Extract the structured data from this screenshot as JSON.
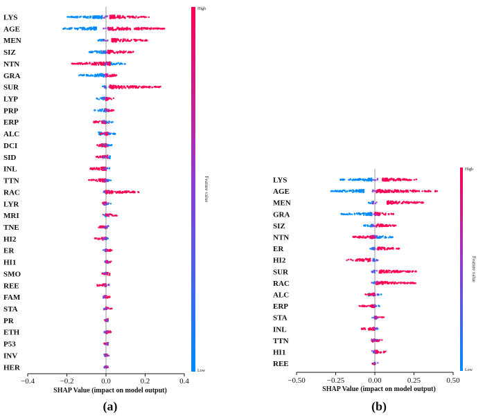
{
  "colors": {
    "high": "#ff0052",
    "mid": "#8a3fd1",
    "low": "#008bfb"
  },
  "chart_data": [
    {
      "type": "scatter",
      "chart_kind": "shap_beeswarm",
      "panel_label": "(a)",
      "xlabel": "SHAP Value (impact on model output)",
      "xlim": [
        -0.4,
        0.4
      ],
      "xticks": [
        -0.4,
        -0.2,
        0.0,
        0.2,
        0.4
      ],
      "xtick_labels": [
        "−0.4",
        "−0.2",
        "0.0",
        "0.2",
        "0.4"
      ],
      "colorbar": {
        "title": "Feature value",
        "high_label": "High",
        "low_label": "Low"
      },
      "features": [
        {
          "name": "LYS",
          "low_range": [
            -0.2,
            -0.02
          ],
          "high_range": [
            0.02,
            0.22
          ]
        },
        {
          "name": "AGE",
          "low_range": [
            -0.22,
            -0.05
          ],
          "high_range": [
            0.01,
            0.3
          ]
        },
        {
          "name": "MEN",
          "low_range": [
            -0.04,
            -0.01
          ],
          "high_range": [
            0.03,
            0.21
          ]
        },
        {
          "name": "SIZ",
          "low_range": [
            -0.09,
            0.0
          ],
          "high_range": [
            0.01,
            0.14
          ]
        },
        {
          "name": "NTN",
          "low_range": [
            -0.01,
            0.1
          ],
          "high_range": [
            -0.18,
            0.02
          ]
        },
        {
          "name": "GRA",
          "low_range": [
            -0.14,
            -0.01
          ],
          "high_range": [
            0.0,
            0.06
          ]
        },
        {
          "name": "SUR",
          "low_range": [
            -0.02,
            0.0
          ],
          "high_range": [
            0.02,
            0.28
          ]
        },
        {
          "name": "LYP",
          "low_range": [
            -0.05,
            0.0
          ],
          "high_range": [
            0.0,
            0.04
          ]
        },
        {
          "name": "PRP",
          "low_range": [
            -0.06,
            0.0
          ],
          "high_range": [
            0.0,
            0.04
          ]
        },
        {
          "name": "ERP",
          "low_range": [
            -0.02,
            0.04
          ],
          "high_range": [
            -0.07,
            0.0
          ]
        },
        {
          "name": "ALC",
          "low_range": [
            -0.04,
            0.05
          ],
          "high_range": [
            -0.03,
            0.01
          ]
        },
        {
          "name": "DCI",
          "low_range": [
            -0.02,
            0.03
          ],
          "high_range": [
            -0.05,
            0.0
          ]
        },
        {
          "name": "SID",
          "low_range": [
            -0.02,
            0.02
          ],
          "high_range": [
            -0.05,
            0.01
          ]
        },
        {
          "name": "INL",
          "low_range": [
            -0.01,
            0.02
          ],
          "high_range": [
            -0.09,
            0.0
          ]
        },
        {
          "name": "TTN",
          "low_range": [
            -0.01,
            0.03
          ],
          "high_range": [
            -0.09,
            0.0
          ]
        },
        {
          "name": "RAC",
          "low_range": [
            -0.01,
            0.0
          ],
          "high_range": [
            0.0,
            0.17
          ]
        },
        {
          "name": "LYR",
          "low_range": [
            -0.01,
            0.03
          ],
          "high_range": [
            -0.03,
            0.0
          ]
        },
        {
          "name": "MRI",
          "low_range": [
            -0.01,
            0.0
          ],
          "high_range": [
            0.0,
            0.06
          ]
        },
        {
          "name": "TNE",
          "low_range": [
            -0.01,
            0.01
          ],
          "high_range": [
            -0.04,
            0.0
          ]
        },
        {
          "name": "HI2",
          "low_range": [
            -0.01,
            0.01
          ],
          "high_range": [
            -0.06,
            0.0
          ]
        },
        {
          "name": "ER",
          "low_range": [
            -0.01,
            0.0
          ],
          "high_range": [
            0.0,
            0.03
          ]
        },
        {
          "name": "HI1",
          "low_range": [
            -0.01,
            0.01
          ],
          "high_range": [
            0.0,
            0.03
          ]
        },
        {
          "name": "SMO",
          "low_range": [
            -0.01,
            0.0
          ],
          "high_range": [
            -0.02,
            0.02
          ]
        },
        {
          "name": "REE",
          "low_range": [
            -0.01,
            0.0
          ],
          "high_range": [
            -0.05,
            0.0
          ]
        },
        {
          "name": "FAM",
          "low_range": [
            -0.01,
            0.0
          ],
          "high_range": [
            -0.01,
            0.02
          ]
        },
        {
          "name": "STA",
          "low_range": [
            -0.01,
            0.01
          ],
          "high_range": [
            0.0,
            0.03
          ]
        },
        {
          "name": "PR",
          "low_range": [
            -0.01,
            0.01
          ],
          "high_range": [
            -0.01,
            0.01
          ]
        },
        {
          "name": "ETH",
          "low_range": [
            -0.01,
            0.0
          ],
          "high_range": [
            0.0,
            0.03
          ]
        },
        {
          "name": "P53",
          "low_range": [
            -0.01,
            0.01
          ],
          "high_range": [
            -0.01,
            0.01
          ]
        },
        {
          "name": "INV",
          "low_range": [
            -0.01,
            0.0
          ],
          "high_range": [
            0.0,
            0.01
          ]
        },
        {
          "name": "HER",
          "low_range": [
            -0.01,
            0.0
          ],
          "high_range": [
            -0.01,
            0.01
          ]
        }
      ]
    },
    {
      "type": "scatter",
      "chart_kind": "shap_beeswarm",
      "panel_label": "(b)",
      "xlabel": "SHAP Value (impact on model output)",
      "xlim": [
        -0.5,
        0.5
      ],
      "xticks": [
        -0.5,
        -0.25,
        0.0,
        0.25,
        0.5
      ],
      "xtick_labels": [
        "−0.50",
        "−0.25",
        "0.00",
        "0.25",
        "0.50"
      ],
      "colorbar": {
        "title": "Feature value",
        "high_label": "High",
        "low_label": "Low"
      },
      "features": [
        {
          "name": "LYS",
          "low_range": [
            -0.22,
            -0.02
          ],
          "high_range": [
            0.05,
            0.27
          ]
        },
        {
          "name": "AGE",
          "low_range": [
            -0.28,
            -0.07
          ],
          "high_range": [
            0.01,
            0.4
          ]
        },
        {
          "name": "MEN",
          "low_range": [
            -0.04,
            -0.01
          ],
          "high_range": [
            0.08,
            0.31
          ]
        },
        {
          "name": "GRA",
          "low_range": [
            -0.22,
            -0.02
          ],
          "high_range": [
            0.0,
            0.12
          ]
        },
        {
          "name": "SIZ",
          "low_range": [
            -0.07,
            -0.01
          ],
          "high_range": [
            0.01,
            0.14
          ]
        },
        {
          "name": "NTN",
          "low_range": [
            -0.02,
            0.12
          ],
          "high_range": [
            -0.14,
            0.0
          ]
        },
        {
          "name": "ER",
          "low_range": [
            -0.03,
            0.0
          ],
          "high_range": [
            0.02,
            0.16
          ]
        },
        {
          "name": "HI2",
          "low_range": [
            -0.01,
            0.02
          ],
          "high_range": [
            -0.18,
            -0.03
          ]
        },
        {
          "name": "SUR",
          "low_range": [
            -0.02,
            0.0
          ],
          "high_range": [
            0.03,
            0.27
          ]
        },
        {
          "name": "RAC",
          "low_range": [
            -0.01,
            0.0
          ],
          "high_range": [
            0.01,
            0.26
          ]
        },
        {
          "name": "ALC",
          "low_range": [
            -0.04,
            0.05
          ],
          "high_range": [
            -0.06,
            0.0
          ]
        },
        {
          "name": "ERP",
          "low_range": [
            -0.02,
            0.03
          ],
          "high_range": [
            -0.1,
            0.0
          ]
        },
        {
          "name": "STA",
          "low_range": [
            -0.02,
            0.01
          ],
          "high_range": [
            0.0,
            0.06
          ]
        },
        {
          "name": "INL",
          "low_range": [
            -0.01,
            0.02
          ],
          "high_range": [
            -0.1,
            0.0
          ]
        },
        {
          "name": "TTN",
          "low_range": [
            -0.02,
            0.02
          ],
          "high_range": [
            -0.02,
            0.05
          ]
        },
        {
          "name": "HI1",
          "low_range": [
            -0.01,
            0.02
          ],
          "high_range": [
            0.0,
            0.08
          ]
        },
        {
          "name": "REE",
          "low_range": [
            -0.01,
            0.0
          ],
          "high_range": [
            -0.02,
            0.0
          ]
        }
      ]
    }
  ]
}
